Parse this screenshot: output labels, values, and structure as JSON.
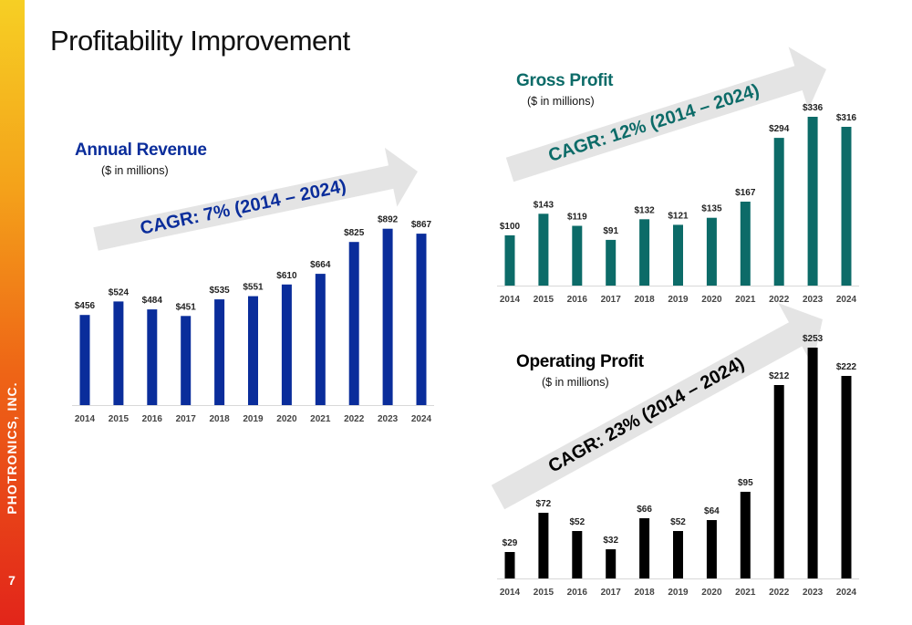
{
  "page": {
    "title": "Profitability Improvement",
    "brand": "PHOTRONICS, INC.",
    "page_number": "7"
  },
  "colors": {
    "revenue": "#0a2d9b",
    "gross": "#0c6b68",
    "operating": "#000000",
    "arrow": "#e4e4e4"
  },
  "chart_data": [
    {
      "type": "bar",
      "title": "Annual Revenue",
      "subtitle": "($ in millions)",
      "cagr": "CAGR: 7% (2014 – 2024)",
      "categories": [
        "2014",
        "2015",
        "2016",
        "2017",
        "2018",
        "2019",
        "2020",
        "2021",
        "2022",
        "2023",
        "2024"
      ],
      "values": [
        456,
        524,
        484,
        451,
        535,
        551,
        610,
        664,
        825,
        892,
        867
      ],
      "labels": [
        "$456",
        "$524",
        "$484",
        "$451",
        "$535",
        "$551",
        "$610",
        "$664",
        "$825",
        "$892",
        "$867"
      ],
      "color": "#0a2d9b"
    },
    {
      "type": "bar",
      "title": "Gross Profit",
      "subtitle": "($ in millions)",
      "cagr": "CAGR: 12% (2014 – 2024)",
      "categories": [
        "2014",
        "2015",
        "2016",
        "2017",
        "2018",
        "2019",
        "2020",
        "2021",
        "2022",
        "2023",
        "2024"
      ],
      "values": [
        100,
        143,
        119,
        91,
        132,
        121,
        135,
        167,
        294,
        336,
        316
      ],
      "labels": [
        "$100",
        "$143",
        "$119",
        "$91",
        "$132",
        "$121",
        "$135",
        "$167",
        "$294",
        "$336",
        "$316"
      ],
      "color": "#0c6b68"
    },
    {
      "type": "bar",
      "title": "Operating Profit",
      "subtitle": "($ in millions)",
      "cagr": "CAGR: 23% (2014 – 2024)",
      "categories": [
        "2014",
        "2015",
        "2016",
        "2017",
        "2018",
        "2019",
        "2020",
        "2021",
        "2022",
        "2023",
        "2024"
      ],
      "values": [
        29,
        72,
        52,
        32,
        66,
        52,
        64,
        95,
        212,
        253,
        222
      ],
      "labels": [
        "$29",
        "$72",
        "$52",
        "$32",
        "$66",
        "$52",
        "$64",
        "$95",
        "$212",
        "$253",
        "$222"
      ],
      "color": "#000000"
    }
  ]
}
